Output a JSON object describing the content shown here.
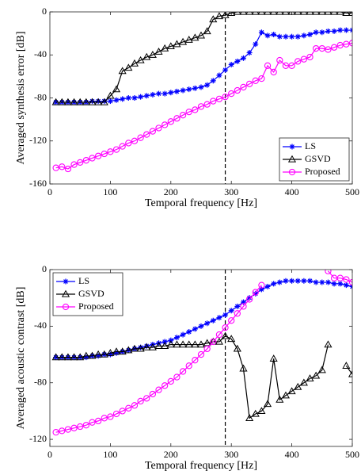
{
  "chart_data": [
    {
      "type": "line",
      "xlabel": "Temporal frequency [Hz]",
      "ylabel": "Averaged synthesis error [dB]",
      "x": [
        10,
        20,
        30,
        40,
        50,
        60,
        70,
        80,
        90,
        100,
        110,
        120,
        130,
        140,
        150,
        160,
        170,
        180,
        190,
        200,
        210,
        220,
        230,
        240,
        250,
        260,
        270,
        280,
        290,
        300,
        310,
        320,
        330,
        340,
        350,
        360,
        370,
        380,
        390,
        400,
        410,
        420,
        430,
        440,
        450,
        460,
        470,
        480,
        490,
        500
      ],
      "xlim": [
        0,
        500
      ],
      "xticks": [
        0,
        100,
        200,
        300,
        400,
        500
      ],
      "ylim": [
        -160,
        0
      ],
      "yticks": [
        -160,
        -120,
        -80,
        -40,
        0
      ],
      "vline": 290,
      "legend": "lower right",
      "series": [
        {
          "name": "LS",
          "color": "#0000ff",
          "marker": "asterisk",
          "values": [
            -84,
            -84,
            -84,
            -84,
            -84,
            -84,
            -83,
            -83,
            -83,
            -83,
            -82,
            -81,
            -80,
            -80,
            -79,
            -78,
            -77,
            -76,
            -76,
            -75,
            -74,
            -73,
            -72,
            -71,
            -70,
            -68,
            -64,
            -59,
            -54,
            -49,
            -46,
            -43,
            -38,
            -30,
            -19,
            -22,
            -21,
            -23,
            -23,
            -23,
            -23,
            -22,
            -21,
            -19,
            -19,
            -18,
            -18,
            -17,
            -17,
            -17
          ]
        },
        {
          "name": "GSVD",
          "color": "#000000",
          "marker": "triangle",
          "values": [
            -84,
            -84,
            -84,
            -84,
            -84,
            -84,
            -84,
            -84,
            -84,
            -78,
            -72,
            -55,
            -52,
            -48,
            -45,
            -42,
            -40,
            -37,
            -34,
            -32,
            -30,
            -28,
            -26,
            -24,
            -22,
            -18,
            -7,
            -4,
            -3,
            -1,
            0,
            0,
            0,
            0,
            0,
            0,
            0,
            0,
            0,
            0,
            0,
            0,
            0,
            0,
            0,
            0,
            0,
            0,
            -1,
            -1
          ]
        },
        {
          "name": "Proposed",
          "color": "#ff00ff",
          "marker": "circle",
          "values": [
            -145,
            -144,
            -146,
            -142,
            -140,
            -138,
            -136,
            -134,
            -132,
            -130,
            -128,
            -125,
            -122,
            -120,
            -117,
            -114,
            -111,
            -108,
            -105,
            -102,
            -99,
            -96,
            -93,
            -91,
            -88,
            -86,
            -83,
            -81,
            -79,
            -76,
            -73,
            -70,
            -67,
            -64,
            -62,
            -50,
            -56,
            -45,
            -50,
            -50,
            -46,
            -44,
            -42,
            -34,
            -34,
            -35,
            -33,
            -31,
            -30,
            -29
          ]
        }
      ]
    },
    {
      "type": "line",
      "xlabel": "Temporal frequency [Hz]",
      "ylabel": "Averaged acoustic contrast [dB]",
      "x": [
        10,
        20,
        30,
        40,
        50,
        60,
        70,
        80,
        90,
        100,
        110,
        120,
        130,
        140,
        150,
        160,
        170,
        180,
        190,
        200,
        210,
        220,
        230,
        240,
        250,
        260,
        270,
        280,
        290,
        300,
        310,
        320,
        330,
        340,
        350,
        360,
        370,
        380,
        390,
        400,
        410,
        420,
        430,
        440,
        450,
        460,
        470,
        480,
        490,
        500
      ],
      "xlim": [
        0,
        500
      ],
      "xticks": [
        0,
        100,
        200,
        300,
        400,
        500
      ],
      "ylim": [
        -125,
        0
      ],
      "yticks": [
        -120,
        -80,
        -40,
        0
      ],
      "vline": 290,
      "legend": "upper left",
      "series": [
        {
          "name": "LS",
          "color": "#0000ff",
          "marker": "asterisk",
          "values": [
            -62,
            -62,
            -62,
            -62,
            -62,
            -62,
            -61,
            -61,
            -60,
            -60,
            -59,
            -58,
            -57,
            -56,
            -55,
            -54,
            -53,
            -52,
            -51,
            -50,
            -48,
            -46,
            -44,
            -42,
            -40,
            -38,
            -36,
            -34,
            -32,
            -29,
            -26,
            -23,
            -20,
            -17,
            -14,
            -12,
            -10,
            -9,
            -8,
            -8,
            -8,
            -8,
            -8,
            -9,
            -9,
            -9,
            -10,
            -10,
            -11,
            -12
          ]
        },
        {
          "name": "GSVD",
          "color": "#000000",
          "marker": "triangle",
          "values": [
            -62,
            -62,
            -62,
            -62,
            -62,
            -61,
            -61,
            -60,
            -60,
            -59,
            -58,
            -58,
            -57,
            -56,
            -56,
            -55,
            -55,
            -54,
            -54,
            -53,
            -53,
            -53,
            -53,
            -53,
            -53,
            -52,
            -51,
            -51,
            -47,
            -49,
            -56,
            -70,
            -105,
            -102,
            -100,
            -95,
            -63,
            -92,
            -89,
            -86,
            -83,
            -80,
            -77,
            -75,
            -71,
            -53,
            null,
            null,
            -68,
            -74
          ]
        },
        {
          "name": "Proposed",
          "color": "#ff00ff",
          "marker": "circle",
          "values": [
            -115,
            -114,
            -113,
            -112,
            -111,
            -110,
            -108,
            -107,
            -105,
            -104,
            -102,
            -100,
            -98,
            -96,
            -93,
            -91,
            -88,
            -85,
            -82,
            -79,
            -76,
            -72,
            -68,
            -64,
            -60,
            -56,
            -51,
            -46,
            -41,
            -36,
            -31,
            -26,
            -21,
            -16,
            -11,
            null,
            null,
            null,
            null,
            null,
            null,
            null,
            null,
            null,
            null,
            -1,
            -6,
            -6,
            -7,
            -9
          ]
        }
      ]
    }
  ]
}
